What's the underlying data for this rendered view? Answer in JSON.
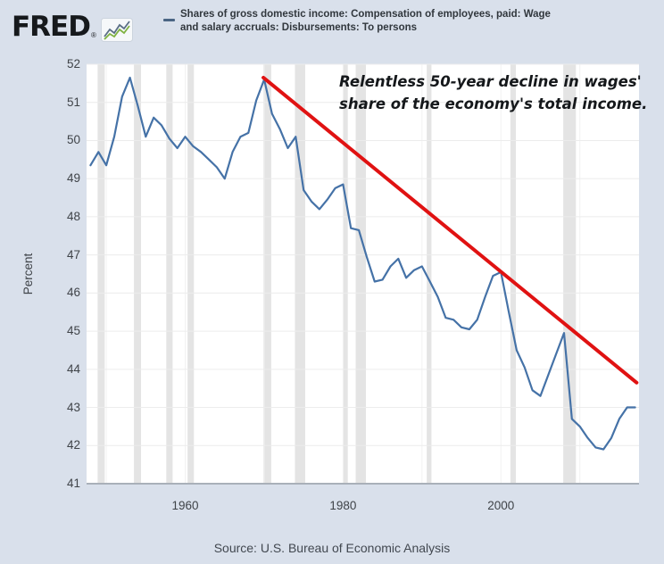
{
  "header": {
    "logo_text": "FRED",
    "registered_mark": "®",
    "sparkline_icon": "green-blue-sparkline",
    "legend_swatch_color": "#4a6584",
    "series_label_line1": "Shares of gross domestic income: Compensation of employees, paid: Wage",
    "series_label_line2": "and salary accruals: Disbursements: To persons"
  },
  "annotation": {
    "line1": "Relentless 50-year decline in wages'",
    "line2": "share of the economy's total income."
  },
  "axes": {
    "y_label": "Percent"
  },
  "footer": {
    "source_text": "Source: U.S. Bureau of Economic Analysis"
  },
  "colors": {
    "page_bg": "#d9e0eb",
    "plot_bg": "#ffffff",
    "h_gridline": "#ececec",
    "v_gridline": "#f2f2f2",
    "recession_band": "#e4e4e4",
    "series_line": "#4572a7",
    "trend_line": "#e01212",
    "axis_line": "#a9b0b9",
    "tick_text": "#3f4348"
  },
  "chart_data": {
    "type": "line",
    "title": "Shares of gross domestic income: Compensation of employees, paid: Wage and salary accruals: Disbursements: To persons",
    "xlabel": "",
    "ylabel": "Percent",
    "xlim": [
      1947.5,
      2017.5
    ],
    "ylim": [
      41,
      52
    ],
    "yticks": [
      41,
      42,
      43,
      44,
      45,
      46,
      47,
      48,
      49,
      50,
      51,
      52
    ],
    "xticks": [
      1960,
      1980,
      2000
    ],
    "vgrid_years": [
      1950,
      1960,
      1970,
      1980,
      1990,
      2000,
      2010
    ],
    "grid": true,
    "legend_position": "top header",
    "series": [
      {
        "name": "Shares of gross domestic income: Compensation of employees, paid: Wage and salary accruals: Disbursements: To persons",
        "color": "#4572a7",
        "x": [
          1948,
          1949,
          1950,
          1951,
          1952,
          1953,
          1954,
          1955,
          1956,
          1957,
          1958,
          1959,
          1960,
          1961,
          1962,
          1963,
          1964,
          1965,
          1966,
          1967,
          1968,
          1969,
          1970,
          1971,
          1972,
          1973,
          1974,
          1975,
          1976,
          1977,
          1978,
          1979,
          1980,
          1981,
          1982,
          1983,
          1984,
          1985,
          1986,
          1987,
          1988,
          1989,
          1990,
          1991,
          1992,
          1993,
          1994,
          1995,
          1996,
          1997,
          1998,
          1999,
          2000,
          2001,
          2002,
          2003,
          2004,
          2005,
          2006,
          2007,
          2008,
          2009,
          2010,
          2011,
          2012,
          2013,
          2014,
          2015,
          2016,
          2017
        ],
        "y": [
          49.35,
          49.7,
          49.35,
          50.1,
          51.15,
          51.65,
          50.9,
          50.1,
          50.6,
          50.4,
          50.05,
          49.8,
          50.1,
          49.85,
          49.7,
          49.5,
          49.3,
          49.0,
          49.7,
          50.1,
          50.2,
          51.05,
          51.6,
          50.7,
          50.3,
          49.8,
          50.1,
          48.7,
          48.4,
          48.2,
          48.45,
          48.75,
          48.85,
          47.7,
          47.65,
          46.95,
          46.3,
          46.35,
          46.7,
          46.9,
          46.4,
          46.6,
          46.7,
          46.3,
          45.9,
          45.35,
          45.3,
          45.1,
          45.05,
          45.3,
          45.9,
          46.45,
          46.55,
          45.5,
          44.5,
          44.05,
          43.45,
          43.3,
          43.85,
          44.4,
          44.95,
          42.7,
          42.5,
          42.2,
          41.95,
          41.9,
          42.2,
          42.7,
          43.0,
          43.0
        ]
      }
    ],
    "trend_line": {
      "description": "straight red decline trend from 1970 peak",
      "color": "#e01212",
      "x1": 1969.9,
      "y1": 51.65,
      "x2": 2017.2,
      "y2": 43.65
    },
    "recession_bands": [
      [
        1948.9,
        1949.8
      ],
      [
        1953.5,
        1954.4
      ],
      [
        1957.6,
        1958.4
      ],
      [
        1960.3,
        1961.1
      ],
      [
        1969.9,
        1970.9
      ],
      [
        1973.9,
        1975.2
      ],
      [
        1980.0,
        1980.6
      ],
      [
        1981.6,
        1982.9
      ],
      [
        1990.6,
        1991.2
      ],
      [
        2001.2,
        2001.9
      ],
      [
        2007.9,
        2009.5
      ]
    ],
    "annotation": "Relentless 50-year decline in wages' share of the economy's total income."
  }
}
